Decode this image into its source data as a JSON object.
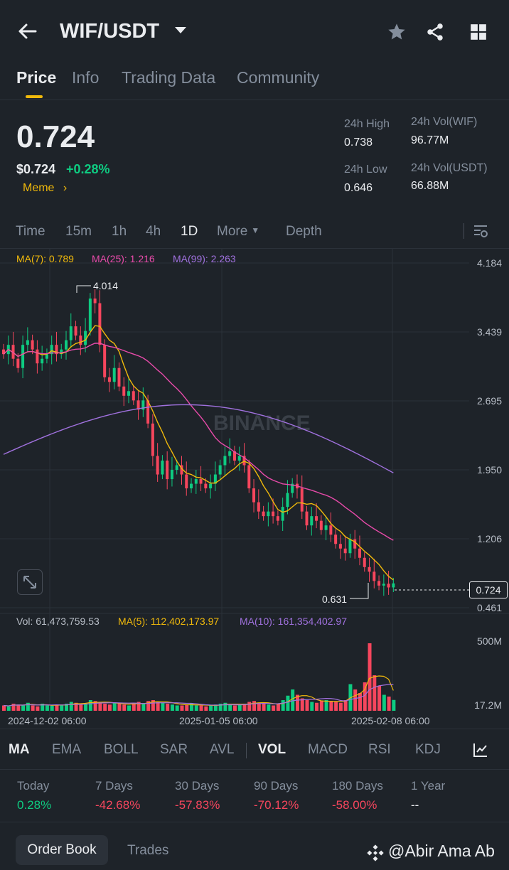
{
  "header": {
    "pair": "WIF/USDT",
    "back_icon": "arrow-left-icon",
    "star_icon": "star-icon",
    "share_icon": "share-icon",
    "grid_icon": "grid-icon"
  },
  "tabs": [
    "Price",
    "Info",
    "Trading Data",
    "Community"
  ],
  "ticker": {
    "price": "0.724",
    "fiat": "$0.724",
    "change": "+0.28%",
    "tag": "Meme",
    "high_label": "24h High",
    "high": "0.738",
    "low_label": "24h Low",
    "low": "0.646",
    "vol_base_label": "24h Vol(WIF)",
    "vol_base": "96.77M",
    "vol_quote_label": "24h Vol(USDT)",
    "vol_quote": "66.88M"
  },
  "timeframes": [
    "Time",
    "15m",
    "1h",
    "4h",
    "1D",
    "More",
    "Depth"
  ],
  "active_timeframe": "1D",
  "ma_legend": {
    "ma7": "MA(7): 0.789",
    "ma25": "MA(25): 1.216",
    "ma99": "MA(99): 2.263"
  },
  "vol_legend": {
    "vol": "Vol: 61,473,759.53",
    "ma5": "MA(5): 112,402,173.97",
    "ma10": "MA(10): 161,354,402.97"
  },
  "indicators": [
    "MA",
    "EMA",
    "BOLL",
    "SAR",
    "AVL",
    "VOL",
    "MACD",
    "RSI",
    "KDJ"
  ],
  "performance": [
    {
      "label": "Today",
      "value": "0.28%"
    },
    {
      "label": "7 Days",
      "value": "-42.68%"
    },
    {
      "label": "30 Days",
      "value": "-57.83%"
    },
    {
      "label": "90 Days",
      "value": "-70.12%"
    },
    {
      "label": "180 Days",
      "value": "-58.00%"
    },
    {
      "label": "1 Year",
      "value": "--"
    }
  ],
  "bottom": {
    "order_book": "Order Book",
    "trades": "Trades",
    "watermark": "@Abir Ama Ab"
  },
  "colors": {
    "up": "#0ecb81",
    "down": "#f6465d",
    "ma7": "#f0b90b",
    "ma25": "#e84baa",
    "ma99": "#a071de",
    "accent": "#f0b90b"
  },
  "chart_data": {
    "type": "candlestick",
    "watermark": "BINANCE",
    "y_ticks": [
      "4.184",
      "3.439",
      "2.695",
      "1.950",
      "1.206",
      "0.461"
    ],
    "ylim": [
      0.461,
      4.184
    ],
    "x_labels": [
      "2024-12-02 06:00",
      "2025-01-05 06:00",
      "2025-02-08 06:00"
    ],
    "high_marker": "4.014",
    "low_marker": "0.631",
    "last_price_tag": "0.724",
    "volume_ticks": [
      "500M",
      "17.2M"
    ],
    "closes": [
      3.2,
      3.3,
      3.15,
      3.05,
      3.3,
      3.35,
      3.25,
      3.1,
      3.15,
      3.2,
      3.3,
      3.2,
      3.25,
      3.35,
      3.5,
      3.4,
      3.3,
      3.45,
      3.8,
      3.75,
      3.3,
      2.95,
      2.9,
      3.05,
      2.85,
      2.75,
      2.8,
      2.7,
      2.6,
      2.7,
      2.45,
      2.1,
      1.9,
      2.05,
      1.85,
      1.95,
      2.0,
      1.9,
      1.75,
      1.8,
      1.85,
      1.8,
      1.75,
      1.8,
      1.9,
      2.0,
      2.1,
      2.15,
      2.05,
      2.1,
      2.0,
      1.75,
      1.6,
      1.5,
      1.45,
      1.5,
      1.45,
      1.4,
      1.55,
      1.7,
      1.8,
      1.75,
      1.5,
      1.35,
      1.45,
      1.4,
      1.3,
      1.35,
      1.25,
      1.15,
      1.1,
      1.05,
      1.2,
      1.1,
      1.0,
      0.9,
      0.85,
      0.75,
      0.7,
      0.72,
      0.68,
      0.724
    ],
    "volumes": [
      30,
      25,
      40,
      35,
      30,
      45,
      30,
      25,
      40,
      30,
      28,
      35,
      30,
      40,
      50,
      45,
      35,
      40,
      60,
      55,
      50,
      40,
      35,
      45,
      40,
      35,
      30,
      45,
      50,
      40,
      55,
      60,
      50,
      45,
      40,
      35,
      30,
      30,
      35,
      40,
      30,
      30,
      25,
      30,
      35,
      40,
      45,
      35,
      30,
      35,
      40,
      50,
      55,
      45,
      40,
      35,
      30,
      40,
      60,
      85,
      120,
      90,
      70,
      60,
      50,
      45,
      55,
      60,
      55,
      50,
      45,
      60,
      150,
      120,
      100,
      160,
      380,
      200,
      140,
      90,
      80,
      61
    ]
  }
}
